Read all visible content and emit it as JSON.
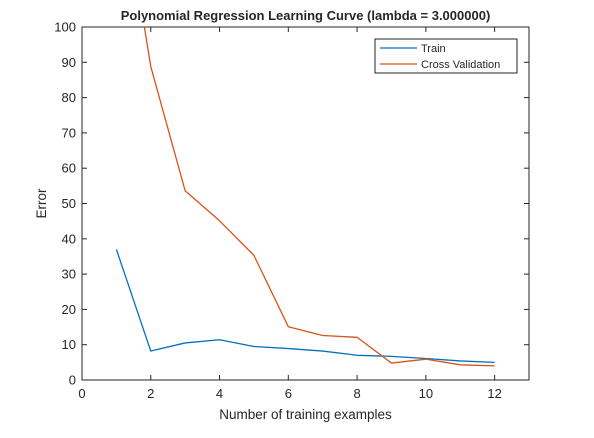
{
  "chart_data": {
    "type": "line",
    "title": "Polynomial Regression Learning Curve (lambda = 3.000000)",
    "xlabel": "Number of training examples",
    "ylabel": "Error",
    "xlim": [
      0,
      13
    ],
    "ylim": [
      0,
      100
    ],
    "xticks": [
      0,
      2,
      4,
      6,
      8,
      10,
      12
    ],
    "yticks": [
      0,
      10,
      20,
      30,
      40,
      50,
      60,
      70,
      80,
      90,
      100
    ],
    "grid": false,
    "legend_position": "top-right",
    "x": [
      1,
      2,
      3,
      4,
      5,
      6,
      7,
      8,
      9,
      10,
      11,
      12
    ],
    "series": [
      {
        "name": "Train",
        "color": "#0072BD",
        "values": [
          37.0,
          8.2,
          10.5,
          11.4,
          9.5,
          8.9,
          8.2,
          7.0,
          6.7,
          6.1,
          5.4,
          5.0
        ]
      },
      {
        "name": "Cross Validation",
        "color": "#D95319",
        "values": [
          149.0,
          88.8,
          53.6,
          45.1,
          35.3,
          15.1,
          12.6,
          12.1,
          4.8,
          5.9,
          4.3,
          4.0
        ]
      }
    ]
  }
}
